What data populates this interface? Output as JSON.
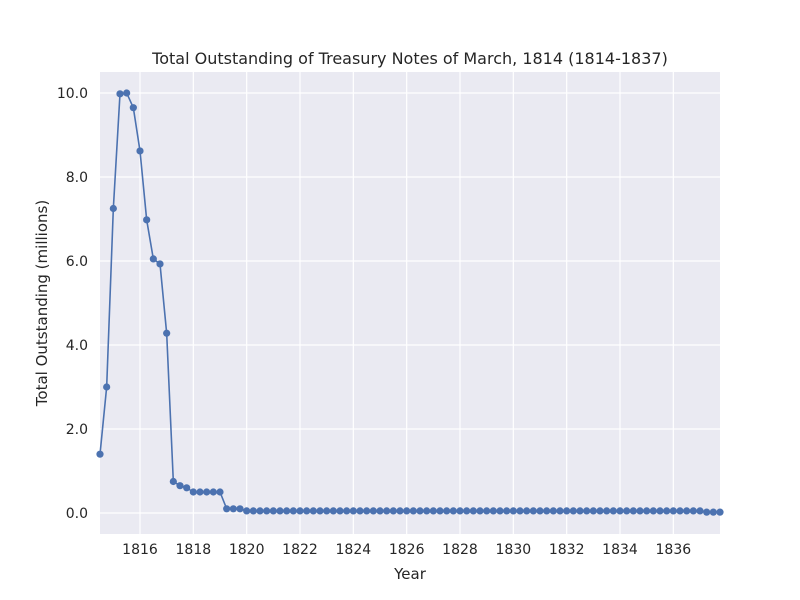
{
  "chart_data": {
    "type": "line",
    "title": "Total Outstanding of Treasury Notes of March, 1814 (1814-1837)",
    "xlabel": "Year",
    "ylabel": "Total Outstanding (millions)",
    "xlim": [
      1814.5,
      1837.75
    ],
    "ylim": [
      -0.5,
      10.5
    ],
    "xticks": [
      1816,
      1818,
      1820,
      1822,
      1824,
      1826,
      1828,
      1830,
      1832,
      1834,
      1836
    ],
    "xtick_labels": [
      "1816",
      "1818",
      "1820",
      "1822",
      "1824",
      "1826",
      "1828",
      "1830",
      "1832",
      "1834",
      "1836"
    ],
    "yticks": [
      0,
      2,
      4,
      6,
      8,
      10
    ],
    "ytick_labels": [
      "0.0",
      "2.0",
      "4.0",
      "6.0",
      "8.0",
      "10.0"
    ],
    "grid": true,
    "colors": {
      "series": "#4c72b0",
      "background": "#eaeaf2",
      "grid": "#ffffff"
    },
    "series": [
      {
        "x": [
          1814.5,
          1814.75,
          1815.0,
          1815.25,
          1815.5,
          1815.75,
          1816.0,
          1816.25,
          1816.5,
          1816.75,
          1817.0,
          1817.25,
          1817.5,
          1817.75,
          1818.0,
          1818.25,
          1818.5,
          1818.75,
          1819.0,
          1819.25,
          1819.5,
          1819.75,
          1820.0,
          1820.25,
          1820.5,
          1820.75,
          1821.0,
          1821.25,
          1821.5,
          1821.75,
          1822.0,
          1822.25,
          1822.5,
          1822.75,
          1823.0,
          1823.25,
          1823.5,
          1823.75,
          1824.0,
          1824.25,
          1824.5,
          1824.75,
          1825.0,
          1825.25,
          1825.5,
          1825.75,
          1826.0,
          1826.25,
          1826.5,
          1826.75,
          1827.0,
          1827.25,
          1827.5,
          1827.75,
          1828.0,
          1828.25,
          1828.5,
          1828.75,
          1829.0,
          1829.25,
          1829.5,
          1829.75,
          1830.0,
          1830.25,
          1830.5,
          1830.75,
          1831.0,
          1831.25,
          1831.5,
          1831.75,
          1832.0,
          1832.25,
          1832.5,
          1832.75,
          1833.0,
          1833.25,
          1833.5,
          1833.75,
          1834.0,
          1834.25,
          1834.5,
          1834.75,
          1835.0,
          1835.25,
          1835.5,
          1835.75,
          1836.0,
          1836.25,
          1836.5,
          1836.75,
          1837.0,
          1837.25,
          1837.5,
          1837.75
        ],
        "y": [
          1.4,
          3.0,
          7.25,
          9.98,
          10.0,
          9.65,
          8.62,
          6.98,
          6.05,
          5.93,
          4.28,
          0.75,
          0.65,
          0.6,
          0.5,
          0.5,
          0.5,
          0.5,
          0.5,
          0.1,
          0.1,
          0.1,
          0.05,
          0.05,
          0.05,
          0.05,
          0.05,
          0.05,
          0.05,
          0.05,
          0.05,
          0.05,
          0.05,
          0.05,
          0.05,
          0.05,
          0.05,
          0.05,
          0.05,
          0.05,
          0.05,
          0.05,
          0.05,
          0.05,
          0.05,
          0.05,
          0.05,
          0.05,
          0.05,
          0.05,
          0.05,
          0.05,
          0.05,
          0.05,
          0.05,
          0.05,
          0.05,
          0.05,
          0.05,
          0.05,
          0.05,
          0.05,
          0.05,
          0.05,
          0.05,
          0.05,
          0.05,
          0.05,
          0.05,
          0.05,
          0.05,
          0.05,
          0.05,
          0.05,
          0.05,
          0.05,
          0.05,
          0.05,
          0.05,
          0.05,
          0.05,
          0.05,
          0.05,
          0.05,
          0.05,
          0.05,
          0.05,
          0.05,
          0.05,
          0.05,
          0.05,
          0.02,
          0.02,
          0.02
        ]
      }
    ]
  }
}
